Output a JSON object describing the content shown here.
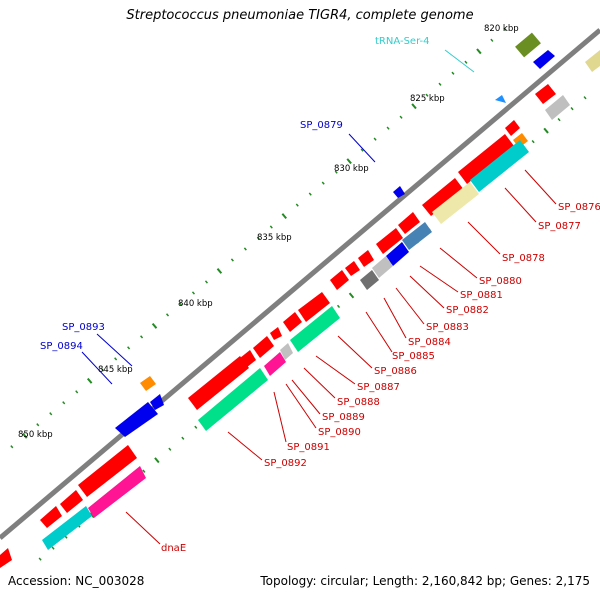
{
  "title": "Streptococcus pneumoniae TIGR4, complete genome",
  "footer": {
    "accession": "Accession: NC_003028",
    "info": "Topology: circular; Length: 2,160,842 bp; Genes: 2,175"
  },
  "colors": {
    "backbone": "#7f7f7f",
    "tick": "#228b22",
    "label_red": "#cc0000",
    "label_blue": "#0000cc",
    "label_cyan": "#33cccc"
  },
  "kbp_labels": [
    "820 kbp",
    "825 kbp",
    "830 kbp",
    "835 kbp",
    "840 kbp",
    "845 kbp",
    "850 kbp"
  ],
  "gene_labels": {
    "red": [
      "SP_0876",
      "SP_0877",
      "SP_0878",
      "SP_0880",
      "SP_0881",
      "SP_0882",
      "SP_0883",
      "SP_0884",
      "SP_0885",
      "SP_0886",
      "SP_0887",
      "SP_0888",
      "SP_0889",
      "SP_0890",
      "SP_0891",
      "SP_0892",
      "dnaE"
    ],
    "blue": [
      "SP_0879",
      "SP_0893",
      "SP_0894"
    ],
    "cyan": [
      "tRNA-Ser-4"
    ]
  }
}
